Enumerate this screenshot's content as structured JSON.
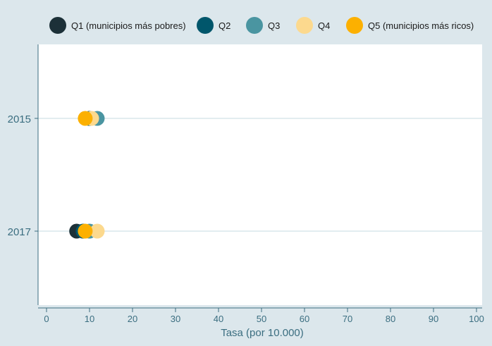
{
  "chart_data": {
    "type": "scatter",
    "orientation": "horizontal-dot",
    "title": "",
    "xlabel": "Tasa (por 10.000)",
    "ylabel": "",
    "xlim": [
      -2,
      101
    ],
    "xticks": [
      0,
      10,
      20,
      30,
      40,
      50,
      60,
      70,
      80,
      90,
      100
    ],
    "categories": [
      "2015",
      "2017"
    ],
    "grid": true,
    "legend_position": "top",
    "series": [
      {
        "name": "Q1 (municipios más pobres)",
        "color": "#1c3038",
        "values": [
          10.0,
          7.0
        ]
      },
      {
        "name": "Q2",
        "color": "#00566b",
        "values": [
          10.0,
          8.5
        ]
      },
      {
        "name": "Q3",
        "color": "#4a95a1",
        "values": [
          11.8,
          10.0
        ]
      },
      {
        "name": "Q4",
        "color": "#fcd98e",
        "values": [
          10.5,
          11.8
        ]
      },
      {
        "name": "Q5 (municipios más ricos)",
        "color": "#fcb000",
        "values": [
          9.0,
          9.0
        ]
      }
    ]
  },
  "colors": {
    "background": "#dce7ec",
    "plot_area": "#ffffff",
    "axis": "#3b6e80",
    "grid": "#d9e7ec"
  }
}
